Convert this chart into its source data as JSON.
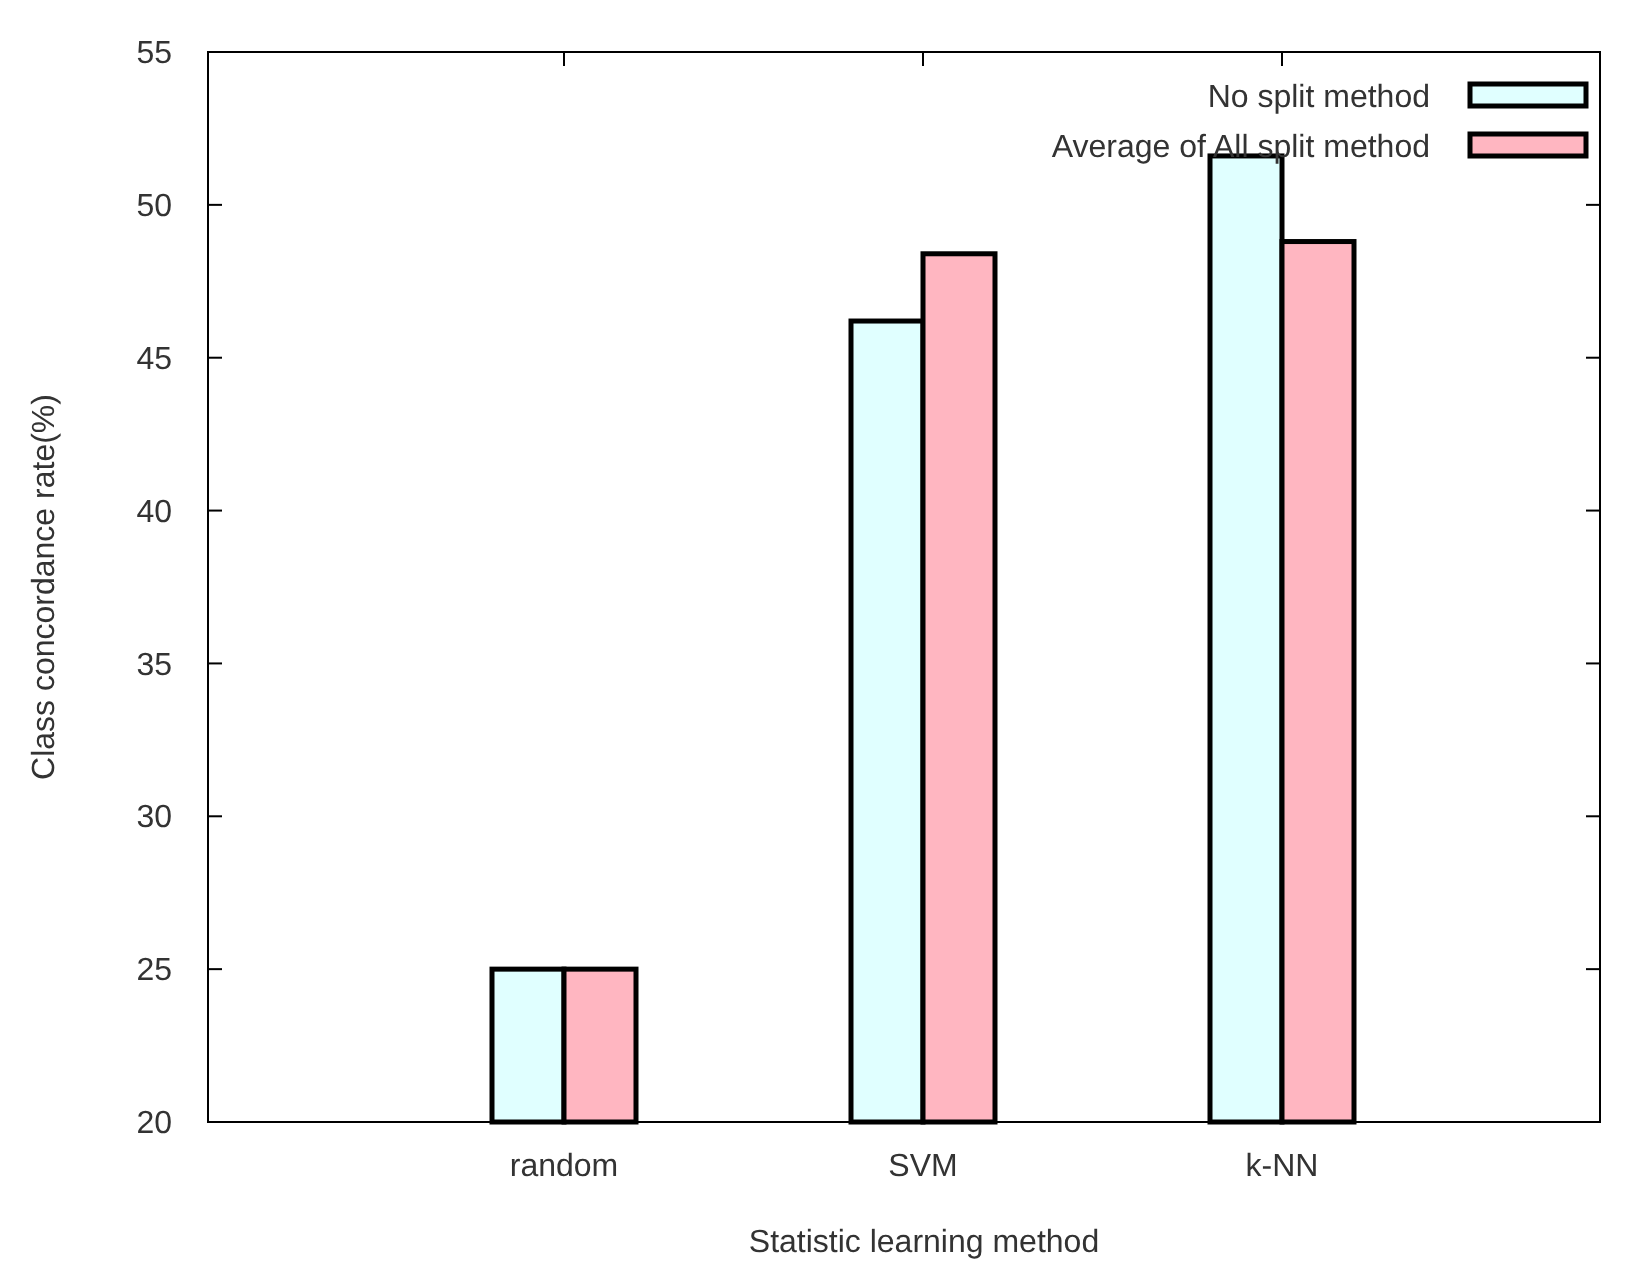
{
  "chart_data": {
    "type": "bar",
    "xlabel": "Statistic learning method",
    "ylabel": "Class concordance rate(%)",
    "categories": [
      "random",
      "SVM",
      "k-NN"
    ],
    "series": [
      {
        "name": "No split method",
        "color": "#e0ffff",
        "values": [
          25,
          46.2,
          51.6
        ]
      },
      {
        "name": "Average of All split method",
        "color": "#ffb6c1",
        "values": [
          25,
          48.4,
          48.8
        ]
      }
    ],
    "ylim": [
      20,
      55
    ],
    "yticks": [
      20,
      25,
      30,
      35,
      40,
      45,
      50,
      55
    ],
    "grid": false,
    "legend": "top right"
  }
}
